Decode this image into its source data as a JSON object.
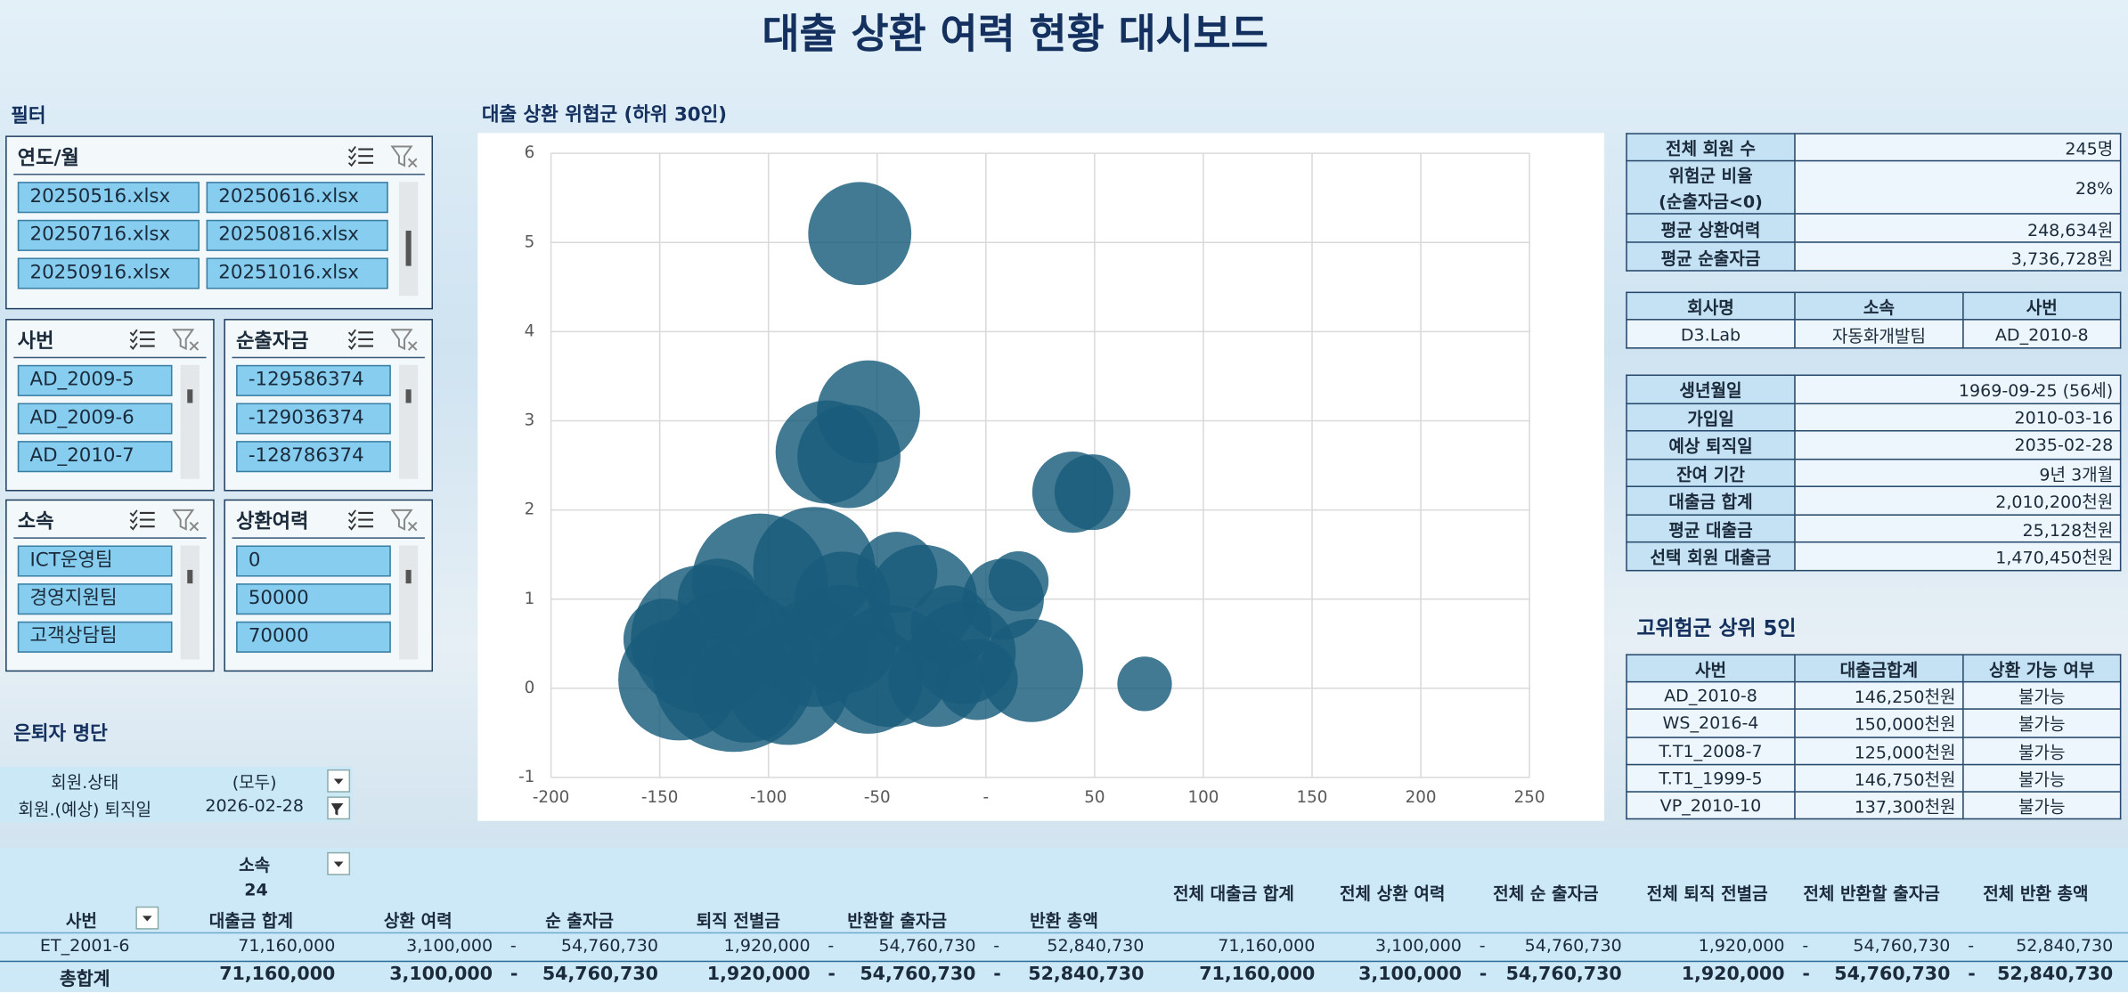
{
  "title": "대출 상환 여력 현황 대시보드",
  "filters": {
    "title": "필터",
    "slicers": [
      {
        "title": "연도/월",
        "items": [
          "20250516.xlsx",
          "20250616.xlsx",
          "20250716.xlsx",
          "20250816.xlsx",
          "20250916.xlsx",
          "20251016.xlsx"
        ]
      },
      {
        "title": "사번",
        "items": [
          "AD_2009-5",
          "AD_2009-6",
          "AD_2010-7"
        ]
      },
      {
        "title": "순출자금",
        "items": [
          "-129586374",
          "-129036374",
          "-128786374"
        ]
      },
      {
        "title": "소속",
        "items": [
          "ICT운영팀",
          "경영지원팀",
          "고객상담팀"
        ]
      },
      {
        "title": "상환여력",
        "items": [
          "0",
          "50000",
          "70000"
        ]
      }
    ]
  },
  "retiree": {
    "title": "은퇴자 명단",
    "filters": [
      [
        "회원.상태",
        "(모두)"
      ],
      [
        "회원.(예상) 퇴직일",
        "2026-02-28"
      ]
    ]
  },
  "chart_data": {
    "type": "bubble",
    "title": "대출 상환 위협군 (하위 30인)",
    "color": "#195b7b",
    "grid": true,
    "x": [
      -58,
      -54,
      -73,
      -63,
      40,
      49,
      73,
      -129,
      -116,
      -104,
      -79,
      -44,
      -29,
      -10,
      21,
      8,
      15,
      -141,
      -91,
      -66,
      -23,
      -4,
      -110,
      -54,
      -79,
      -148,
      -41,
      -16,
      -123,
      -66
    ],
    "values": [
      5.1,
      3.1,
      2.65,
      2.6,
      2.2,
      2.2,
      0.05,
      0.55,
      0.2,
      1.2,
      1.35,
      0.25,
      1.0,
      0.4,
      0.2,
      1.0,
      1.2,
      0.1,
      0.05,
      0.55,
      0.1,
      0.1,
      0,
      0.1,
      0.4,
      0.55,
      1.3,
      0.7,
      1.0,
      1.0
    ],
    "sizes": [
      100,
      100,
      100,
      100,
      62,
      54,
      28,
      209,
      249,
      173,
      140,
      140,
      111,
      100,
      100,
      62,
      34,
      140,
      140,
      111,
      85,
      62,
      111,
      111,
      111,
      62,
      62,
      62,
      62,
      85
    ],
    "xlim": [
      -200,
      250
    ],
    "xticks": [
      -200,
      -150,
      -100,
      -50,
      {
        "value": 0,
        "label": "-"
      },
      50,
      100,
      150,
      200,
      250
    ],
    "ylim": [
      -1,
      6
    ],
    "yticks": [
      -1,
      0,
      1,
      2,
      3,
      4,
      5,
      6
    ]
  },
  "summary": {
    "rows": [
      [
        "전체 회원 수",
        "245명"
      ],
      [
        "위험군 비율\n(순출자금<0)",
        "28%"
      ],
      [
        "평균 상환여력",
        "248,634원"
      ],
      [
        "평균 순출자금",
        "3,736,728원"
      ]
    ]
  },
  "company": {
    "headers": [
      "회사명",
      "소속",
      "사번"
    ],
    "rows": [
      [
        "D3.Lab",
        "자동화개발팀",
        "AD_2010-8"
      ]
    ]
  },
  "member": {
    "rows": [
      [
        "생년월일",
        "1969-09-25 (56세)"
      ],
      [
        "가입일",
        "2010-03-16"
      ],
      [
        "예상 퇴직일",
        "2035-02-28"
      ],
      [
        "잔여 기간",
        "9년 3개월"
      ],
      [
        "대출금 합계",
        "2,010,200천원"
      ],
      [
        "평균 대출금",
        "25,128천원"
      ],
      [
        "선택 회원 대출금",
        "1,470,450천원"
      ]
    ]
  },
  "top5": {
    "title": "고위험군 상위 5인",
    "headers": [
      "사번",
      "대출금합계",
      "상환 가능 여부"
    ],
    "rows": [
      [
        "AD_2010-8",
        "146,250천원",
        "불가능"
      ],
      [
        "WS_2016-4",
        "150,000천원",
        "불가능"
      ],
      [
        "T.T1_2008-7",
        "125,000천원",
        "불가능"
      ],
      [
        "T.T1_1999-5",
        "146,750천원",
        "불가능"
      ],
      [
        "VP_2010-10",
        "137,300천원",
        "불가능"
      ]
    ]
  },
  "pivot": {
    "filter_label": "소속",
    "count": "24",
    "headers": [
      "사번",
      "대출금 합계",
      "상환 여력",
      "순 출자금",
      "퇴직 전별금",
      "반환할 출자금",
      "반환 총액",
      "전체 대출금 합계",
      "전체 상환 여력",
      "전체 순 출자금",
      "전체 퇴직 전별금",
      "전체 반환할 출자금",
      "전체 반환 총액"
    ],
    "rows": [
      [
        "ET_2001-6",
        "71,160,000",
        "3,100,000",
        [
          "-",
          "54,760,730"
        ],
        "1,920,000",
        [
          "-",
          "54,760,730"
        ],
        [
          "-",
          "52,840,730"
        ],
        "71,160,000",
        "3,100,000",
        [
          "-",
          "54,760,730"
        ],
        "1,920,000",
        [
          "-",
          "54,760,730"
        ],
        [
          "-",
          "52,840,730"
        ]
      ],
      [
        "총합계",
        "71,160,000",
        "3,100,000",
        [
          "-",
          "54,760,730"
        ],
        "1,920,000",
        [
          "-",
          "54,760,730"
        ],
        [
          "-",
          "52,840,730"
        ],
        "71,160,000",
        "3,100,000",
        [
          "-",
          "54,760,730"
        ],
        "1,920,000",
        [
          "-",
          "54,760,730"
        ],
        [
          "-",
          "52,840,730"
        ]
      ]
    ]
  }
}
